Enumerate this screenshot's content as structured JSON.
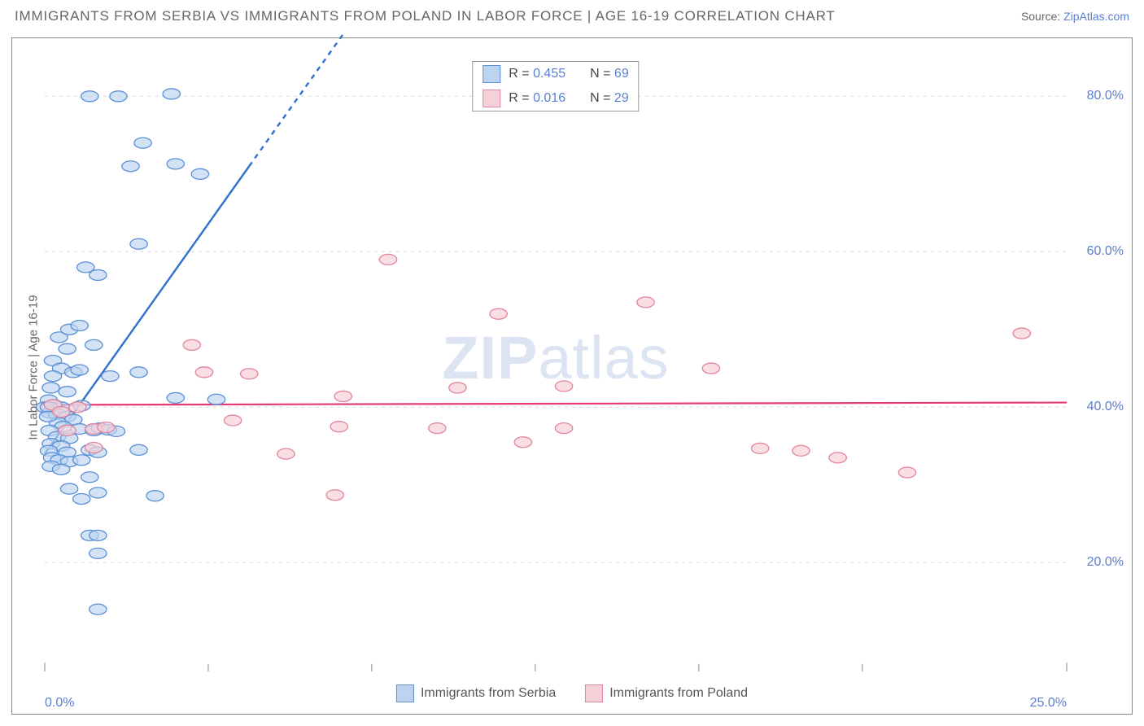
{
  "header": {
    "title": "IMMIGRANTS FROM SERBIA VS IMMIGRANTS FROM POLAND IN LABOR FORCE | AGE 16-19 CORRELATION CHART",
    "source_prefix": "Source: ",
    "source_link": "ZipAtlas.com"
  },
  "chart": {
    "type": "scatter",
    "y_axis_label": "In Labor Force | Age 16-19",
    "watermark_bold": "ZIP",
    "watermark_rest": "atlas",
    "xlim": [
      0,
      25
    ],
    "ylim": [
      6,
      86
    ],
    "x_ticks": [
      {
        "v": 0,
        "label": "0.0%"
      },
      {
        "v": 25,
        "label": "25.0%"
      }
    ],
    "x_minor_ticks": [
      4,
      8,
      12,
      16,
      20
    ],
    "y_grid": [
      {
        "v": 20,
        "label": "20.0%"
      },
      {
        "v": 40,
        "label": "40.0%"
      },
      {
        "v": 60,
        "label": "60.0%"
      },
      {
        "v": 80,
        "label": "80.0%"
      }
    ],
    "marker_radius": 8.5,
    "marker_stroke_width": 1.3,
    "series_blue": {
      "name": "Immigrants from Serbia",
      "fill": "#bcd4ef",
      "fill_opacity": 0.65,
      "stroke": "#5b8fd6",
      "trend": {
        "color": "#2f6fd0",
        "width": 2.4,
        "x1": 0,
        "y1": 34,
        "x2": 5,
        "y2": 71,
        "x3": 7.3,
        "y3": 88
      },
      "points": [
        [
          1.1,
          80
        ],
        [
          1.8,
          80
        ],
        [
          3.1,
          80.3
        ],
        [
          2.4,
          74
        ],
        [
          2.1,
          71
        ],
        [
          3.2,
          71.3
        ],
        [
          3.8,
          70
        ],
        [
          2.3,
          61
        ],
        [
          1.0,
          58
        ],
        [
          1.3,
          57
        ],
        [
          0.35,
          49
        ],
        [
          0.6,
          50
        ],
        [
          0.85,
          50.5
        ],
        [
          1.2,
          48
        ],
        [
          0.55,
          47.5
        ],
        [
          0.2,
          46
        ],
        [
          0.4,
          45
        ],
        [
          0.7,
          44.5
        ],
        [
          0.2,
          44
        ],
        [
          0.85,
          44.8
        ],
        [
          1.6,
          44
        ],
        [
          2.3,
          44.5
        ],
        [
          0.15,
          42.5
        ],
        [
          0.55,
          42
        ],
        [
          3.2,
          41.2
        ],
        [
          4.2,
          41
        ],
        [
          0.1,
          40.9
        ],
        [
          0.22,
          40.3
        ],
        [
          0.4,
          40
        ],
        [
          0.9,
          40.2
        ],
        [
          0.12,
          39.3
        ],
        [
          0.3,
          39.1
        ],
        [
          0.55,
          38.8
        ],
        [
          0.7,
          38.4
        ],
        [
          0.32,
          38
        ],
        [
          0.45,
          37.5
        ],
        [
          0.12,
          37
        ],
        [
          0.85,
          37.2
        ],
        [
          1.2,
          37
        ],
        [
          1.35,
          37.3
        ],
        [
          1.55,
          37.1
        ],
        [
          1.75,
          36.9
        ],
        [
          0.3,
          36.2
        ],
        [
          0.6,
          36
        ],
        [
          0.15,
          35.3
        ],
        [
          0.4,
          35
        ],
        [
          0.1,
          34.4
        ],
        [
          0.55,
          34.2
        ],
        [
          1.1,
          34.5
        ],
        [
          1.3,
          34.2
        ],
        [
          2.3,
          34.5
        ],
        [
          0.18,
          33.5
        ],
        [
          0.35,
          33.2
        ],
        [
          0.6,
          33
        ],
        [
          0.9,
          33.2
        ],
        [
          0.15,
          32.4
        ],
        [
          0.4,
          32
        ],
        [
          1.1,
          31
        ],
        [
          0.6,
          29.5
        ],
        [
          1.3,
          29
        ],
        [
          0.9,
          28.2
        ],
        [
          2.7,
          28.6
        ],
        [
          1.1,
          23.5
        ],
        [
          1.3,
          23.5
        ],
        [
          1.3,
          21.2
        ],
        [
          1.3,
          14
        ],
        [
          0,
          40
        ],
        [
          0.1,
          40
        ],
        [
          0.08,
          38.8
        ]
      ]
    },
    "series_pink": {
      "name": "Immigrants from Poland",
      "fill": "#f6d0d9",
      "fill_opacity": 0.7,
      "stroke": "#e2849e",
      "trend": {
        "color": "#e6397a",
        "width": 2.2,
        "x1": 0,
        "y1": 40.3,
        "x2": 25,
        "y2": 40.6
      },
      "points": [
        [
          8.4,
          59
        ],
        [
          11.1,
          52
        ],
        [
          14.7,
          53.5
        ],
        [
          23.9,
          49.5
        ],
        [
          3.6,
          48
        ],
        [
          3.9,
          44.5
        ],
        [
          5.0,
          44.3
        ],
        [
          16.3,
          45
        ],
        [
          10.1,
          42.5
        ],
        [
          12.7,
          42.7
        ],
        [
          7.3,
          41.4
        ],
        [
          0.2,
          40.3
        ],
        [
          0.8,
          40
        ],
        [
          0.4,
          39.4
        ],
        [
          4.6,
          38.3
        ],
        [
          7.2,
          37.5
        ],
        [
          9.6,
          37.3
        ],
        [
          12.7,
          37.3
        ],
        [
          0.55,
          37.0
        ],
        [
          1.2,
          37.2
        ],
        [
          1.5,
          37.4
        ],
        [
          11.7,
          35.5
        ],
        [
          1.2,
          34.8
        ],
        [
          17.5,
          34.7
        ],
        [
          18.5,
          34.4
        ],
        [
          5.9,
          34
        ],
        [
          19.4,
          33.5
        ],
        [
          21.1,
          31.6
        ],
        [
          7.1,
          28.7
        ]
      ]
    },
    "stats_legend": {
      "rows": [
        {
          "swatch": "blue",
          "r_label": "R = ",
          "r": "0.455",
          "n_label": "N = ",
          "n": "69"
        },
        {
          "swatch": "pink",
          "r_label": "R = ",
          "r": "0.016",
          "n_label": "N = ",
          "n": "29"
        }
      ]
    },
    "bottom_legend": [
      {
        "swatch": "blue",
        "label": "Immigrants from Serbia"
      },
      {
        "swatch": "pink",
        "label": "Immigrants from Poland"
      }
    ],
    "background_color": "#ffffff",
    "grid_color": "#d8d8d8"
  }
}
